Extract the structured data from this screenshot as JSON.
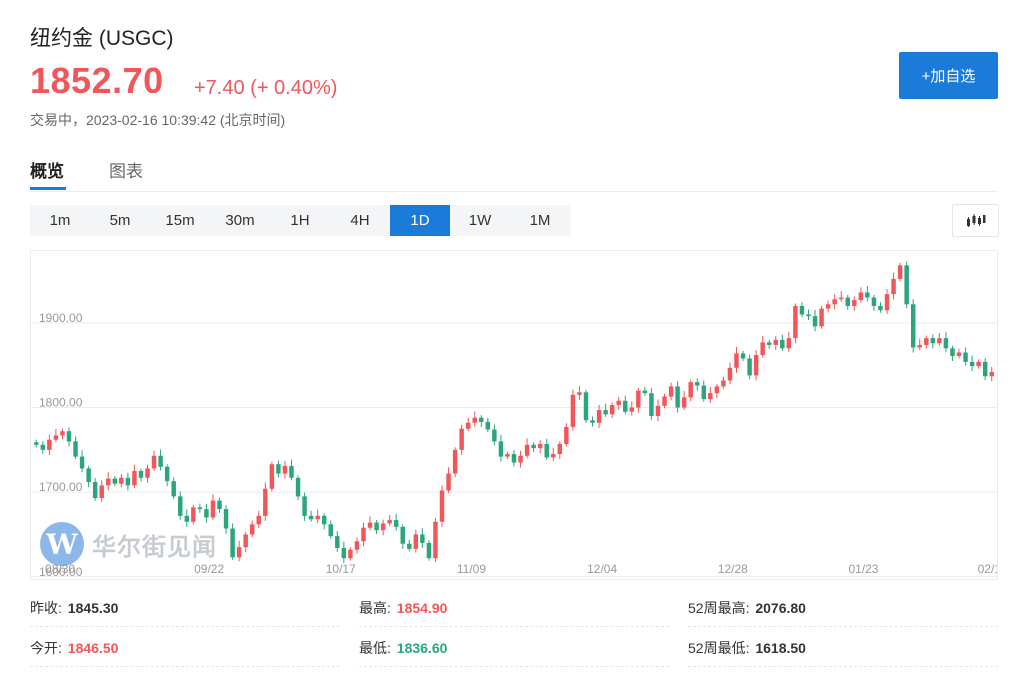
{
  "header": {
    "title": "纽约金  (USGC)",
    "price": "1852.70",
    "change": "+7.40 (+ 0.40%)",
    "status": "交易中，2023-02-16 10:39:42 (北京时间)",
    "add_button": "+加自选"
  },
  "tabs": [
    {
      "label": "概览",
      "active": true
    },
    {
      "label": "图表",
      "active": false
    }
  ],
  "periods": [
    {
      "label": "1m",
      "active": false
    },
    {
      "label": "5m",
      "active": false
    },
    {
      "label": "15m",
      "active": false
    },
    {
      "label": "30m",
      "active": false
    },
    {
      "label": "1H",
      "active": false
    },
    {
      "label": "4H",
      "active": false
    },
    {
      "label": "1D",
      "active": true
    },
    {
      "label": "1W",
      "active": false
    },
    {
      "label": "1M",
      "active": false
    }
  ],
  "chart_toggle_icon": "candlestick-icon",
  "watermark": "华尔街见闻",
  "colors": {
    "up": "#f0565a",
    "down": "#2aa57c",
    "accent": "#1a7cd8"
  },
  "chart_data": {
    "type": "candlestick",
    "y_tick_labels": [
      "1600.00",
      "1700.00",
      "1800.00",
      "1900.00"
    ],
    "x_tick_labels": [
      "08/30",
      "09/22",
      "10/17",
      "11/09",
      "12/04",
      "12/28",
      "01/23",
      "02/1"
    ],
    "ylim": [
      1595,
      1985
    ],
    "grid": "horizontal",
    "closes": [
      1756,
      1750,
      1762,
      1767,
      1772,
      1760,
      1742,
      1728,
      1712,
      1693,
      1708,
      1716,
      1710,
      1717,
      1708,
      1725,
      1717,
      1728,
      1743,
      1730,
      1713,
      1695,
      1672,
      1665,
      1682,
      1680,
      1670,
      1690,
      1680,
      1657,
      1623,
      1635,
      1650,
      1662,
      1672,
      1704,
      1733,
      1722,
      1731,
      1717,
      1695,
      1672,
      1668,
      1672,
      1662,
      1648,
      1634,
      1622,
      1632,
      1642,
      1658,
      1664,
      1655,
      1663,
      1667,
      1659,
      1639,
      1633,
      1650,
      1640,
      1622,
      1665,
      1702,
      1722,
      1750,
      1775,
      1782,
      1788,
      1783,
      1774,
      1760,
      1742,
      1745,
      1735,
      1743,
      1756,
      1752,
      1757,
      1741,
      1745,
      1757,
      1777,
      1815,
      1818,
      1785,
      1782,
      1797,
      1792,
      1803,
      1808,
      1795,
      1800,
      1820,
      1817,
      1790,
      1802,
      1813,
      1825,
      1800,
      1812,
      1830,
      1826,
      1810,
      1817,
      1825,
      1832,
      1847,
      1864,
      1858,
      1838,
      1862,
      1877,
      1874,
      1880,
      1870,
      1882,
      1920,
      1910,
      1908,
      1896,
      1917,
      1922,
      1928,
      1930,
      1920,
      1927,
      1936,
      1930,
      1920,
      1915,
      1934,
      1952,
      1968,
      1922,
      1871,
      1874,
      1882,
      1876,
      1882,
      1870,
      1861,
      1865,
      1854,
      1849,
      1854,
      1837,
      1842
    ]
  }
}
